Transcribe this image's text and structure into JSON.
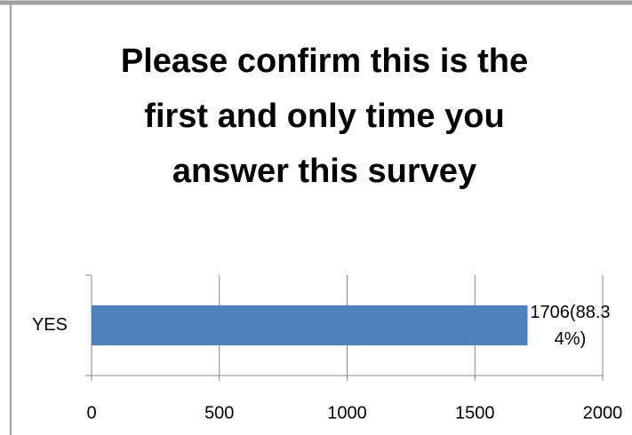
{
  "chart_data": {
    "type": "bar",
    "orientation": "horizontal",
    "title": "Please confirm this is the first and only time you answer this survey",
    "categories": [
      "YES"
    ],
    "values": [
      1706
    ],
    "value_labels": [
      "1706(88.34%)"
    ],
    "color": "#4f81bd",
    "xlim": [
      0,
      2000
    ],
    "xticks": [
      0,
      500,
      1000,
      1500,
      2000
    ],
    "grid": true
  }
}
